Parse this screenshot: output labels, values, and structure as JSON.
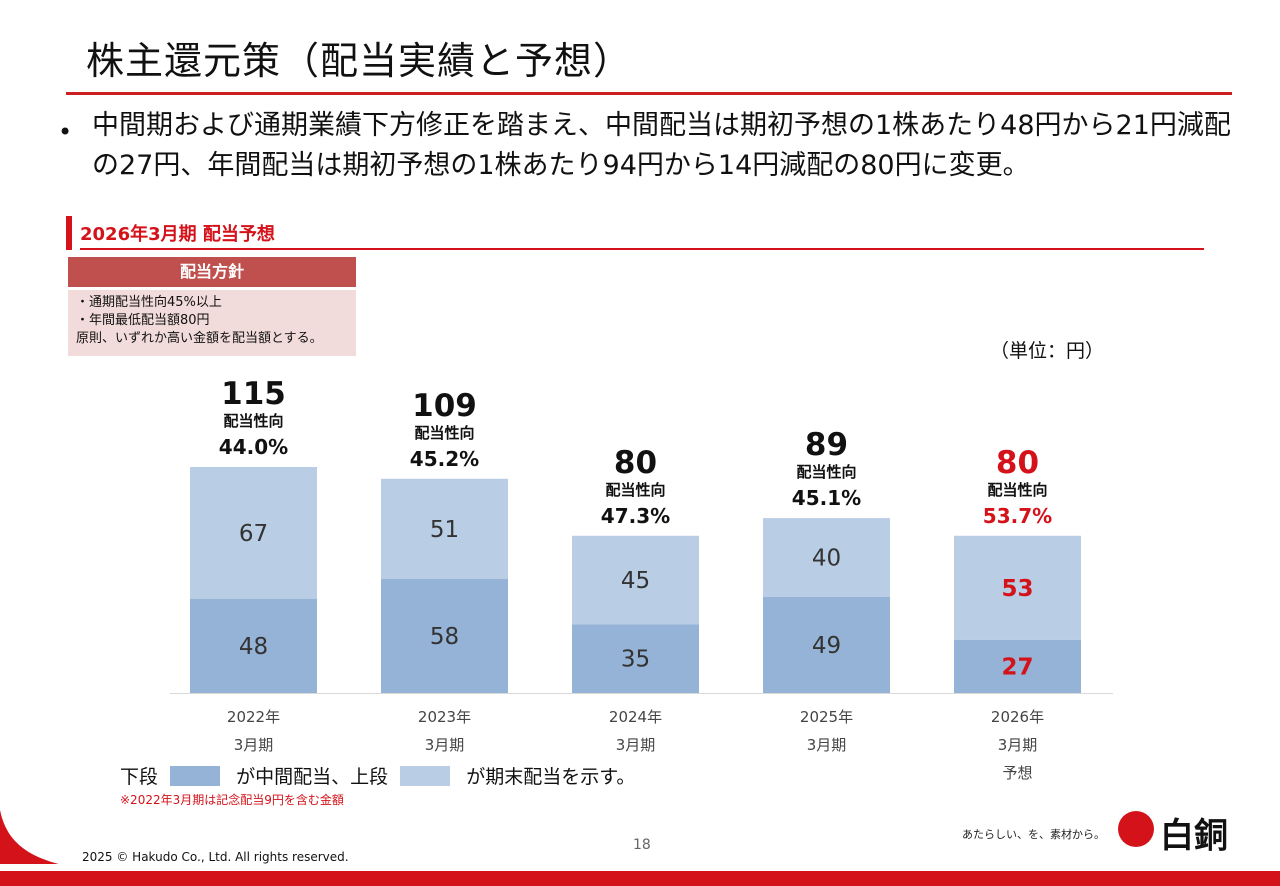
{
  "slide": {
    "title": "株主還元策（配当実績と予想）",
    "bullet": "中間期および通期業績下方修正を踏まえ、中間配当は期初予想の1株あたり48円から21円減配の27円、年間配当は期初予想の1株あたり94円から14円減配の80円に変更。",
    "section_title": "2026年3月期  配当予想",
    "policy": {
      "header": "配当方針",
      "lines": [
        "・通期配当性向45%以上",
        "・年間最低配当額80円",
        "原則、いずれか高い金額を配当額とする。"
      ]
    },
    "unit_label": "（単位：円）",
    "legend": {
      "prefix": "下段",
      "interim_text": "が中間配当、上段",
      "yearend_text": "が期末配当を示す。"
    },
    "note": "※2022年3月期は記念配当9円を含む金額",
    "page_number": "18",
    "copyright": "2025 © Hakudo Co., Ltd. All rights reserved.",
    "tagline": "あたらしい、を、素材から。",
    "logo_text": "白銅"
  },
  "colors": {
    "accent_red": "#d4121a",
    "interim_bar": "#95b3d7",
    "yearend_bar": "#b9cde5",
    "policy_header": "#c0504d",
    "policy_bg": "#f2dcdb"
  },
  "chart_data": {
    "type": "bar",
    "stacked": true,
    "categories": [
      [
        "2022年",
        "3月期"
      ],
      [
        "2023年",
        "3月期"
      ],
      [
        "2024年",
        "3月期"
      ],
      [
        "2025年",
        "3月期"
      ],
      [
        "2026年",
        "3月期",
        "予想"
      ]
    ],
    "series": [
      {
        "name": "中間配当",
        "values": [
          48,
          58,
          35,
          49,
          27
        ]
      },
      {
        "name": "期末配当",
        "values": [
          67,
          51,
          45,
          40,
          53
        ]
      }
    ],
    "totals": [
      115,
      109,
      80,
      89,
      80
    ],
    "payout_label": "配当性向",
    "payout_ratios": [
      "44.0%",
      "45.2%",
      "47.3%",
      "45.1%",
      "53.7%"
    ],
    "highlight_index": 4,
    "ylim": [
      0,
      115
    ]
  }
}
